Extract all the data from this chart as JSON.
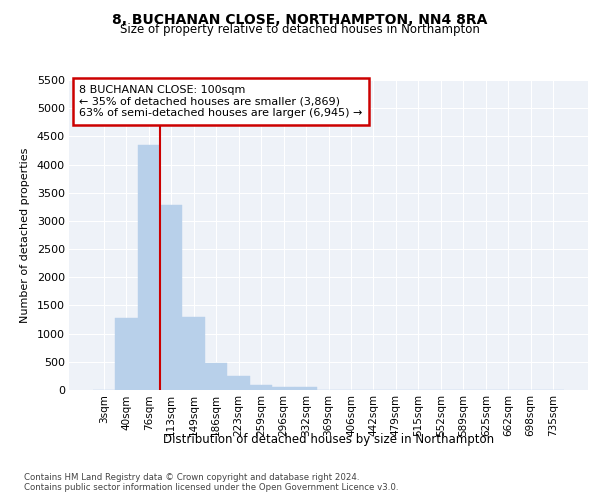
{
  "title": "8, BUCHANAN CLOSE, NORTHAMPTON, NN4 8RA",
  "subtitle": "Size of property relative to detached houses in Northampton",
  "xlabel": "Distribution of detached houses by size in Northampton",
  "ylabel": "Number of detached properties",
  "annotation_title": "8 BUCHANAN CLOSE: 100sqm",
  "annotation_line1": "← 35% of detached houses are smaller (3,869)",
  "annotation_line2": "63% of semi-detached houses are larger (6,945) →",
  "footer1": "Contains HM Land Registry data © Crown copyright and database right 2024.",
  "footer2": "Contains public sector information licensed under the Open Government Licence v3.0.",
  "bar_color": "#b8d0ea",
  "vline_color": "#cc0000",
  "background_color": "#eef2f8",
  "grid_color": "#ffffff",
  "categories": [
    "3sqm",
    "40sqm",
    "76sqm",
    "113sqm",
    "149sqm",
    "186sqm",
    "223sqm",
    "259sqm",
    "296sqm",
    "332sqm",
    "369sqm",
    "406sqm",
    "442sqm",
    "479sqm",
    "515sqm",
    "552sqm",
    "589sqm",
    "625sqm",
    "662sqm",
    "698sqm",
    "735sqm"
  ],
  "values": [
    0,
    1280,
    4340,
    3280,
    1290,
    480,
    240,
    90,
    60,
    55,
    0,
    0,
    0,
    0,
    0,
    0,
    0,
    0,
    0,
    0,
    0
  ],
  "ylim": [
    0,
    5500
  ],
  "yticks": [
    0,
    500,
    1000,
    1500,
    2000,
    2500,
    3000,
    3500,
    4000,
    4500,
    5000,
    5500
  ]
}
